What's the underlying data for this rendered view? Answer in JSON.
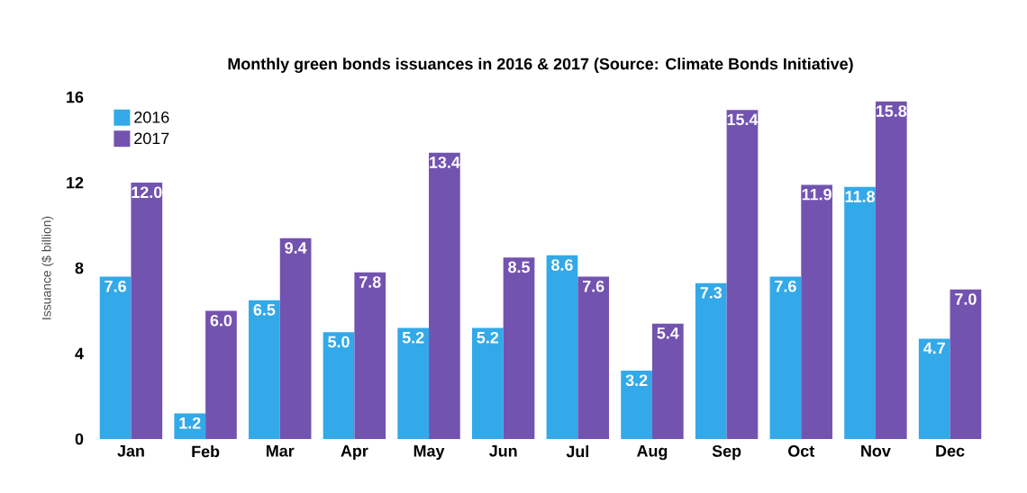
{
  "chart_data": {
    "type": "bar",
    "title": "Monthly green bonds issuances in 2016 & 2017 (Source: Climate Bonds Initiative)",
    "ylabel": "Issuance ($ billion)",
    "categories": [
      "Jan",
      "Feb",
      "Mar",
      "Apr",
      "May",
      "Jun",
      "Jul",
      "Aug",
      "Sep",
      "Oct",
      "Nov",
      "Dec"
    ],
    "series": [
      {
        "name": "2016",
        "color": "#33a9e9",
        "values": [
          7.6,
          1.2,
          6.5,
          5.0,
          5.2,
          5.2,
          8.6,
          3.2,
          7.3,
          7.6,
          11.8,
          4.7
        ],
        "value_labels": [
          "7.6",
          "1.2",
          "6.5",
          "5.0",
          "5.2",
          "5.2",
          "8.6",
          "3.2",
          "7.3",
          "7.6",
          "11.8",
          "4.7"
        ]
      },
      {
        "name": "2017",
        "color": "#7353b0",
        "values": [
          12.0,
          6.0,
          9.4,
          7.8,
          13.4,
          8.5,
          7.6,
          5.4,
          15.4,
          11.9,
          15.8,
          7.0
        ],
        "value_labels": [
          "12.0",
          "6.0",
          "9.4",
          "7.8",
          "13.4",
          "8.5",
          "7.6",
          "5.4",
          "15.4",
          "11.9",
          "15.8",
          "7.0"
        ]
      }
    ],
    "ylim": [
      0,
      16
    ],
    "yticks": [
      0,
      4,
      8,
      12,
      16
    ],
    "legend": "top left"
  }
}
